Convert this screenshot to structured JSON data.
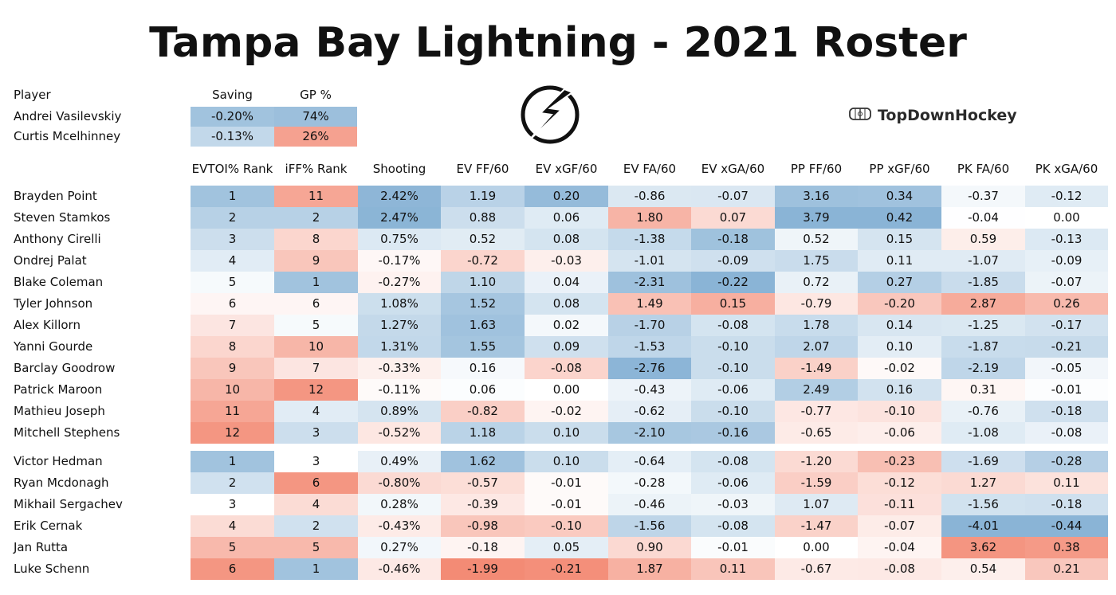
{
  "title": "Tampa Bay Lightning - 2021 Roster",
  "brand": {
    "label": "TopDownHockey",
    "icon": "rink-icon"
  },
  "logo": {
    "icon": "lightning-bolt-logo-icon"
  },
  "colors": {
    "blue_strong": "#8fb8d8",
    "blue_light": "#d6e7f4",
    "red_strong": "#f39079",
    "red_light": "#fde4df",
    "white": "#ffffff"
  },
  "goalies": {
    "headers": [
      "Player",
      "Saving",
      "GP %"
    ],
    "rows": [
      {
        "player": "Andrei Vasilevskiy",
        "saving": "-0.20%",
        "gp": "74%"
      },
      {
        "player": "Curtis Mcelhinney",
        "saving": "-0.13%",
        "gp": "26%"
      }
    ]
  },
  "skaters": {
    "headers": [
      "EVTOI% Rank",
      "iFF% Rank",
      "Shooting",
      "EV FF/60",
      "EV xGF/60",
      "EV FA/60",
      "EV xGA/60",
      "PP FF/60",
      "PP xGF/60",
      "PK FA/60",
      "PK xGA/60"
    ],
    "forwards": [
      {
        "player": "Brayden Point",
        "values": [
          "1",
          "11",
          "2.42%",
          "1.19",
          "0.20",
          "-0.86",
          "-0.07",
          "3.16",
          "0.34",
          "-0.37",
          "-0.12"
        ]
      },
      {
        "player": "Steven Stamkos",
        "values": [
          "2",
          "2",
          "2.47%",
          "0.88",
          "0.06",
          "1.80",
          "0.07",
          "3.79",
          "0.42",
          "-0.04",
          "0.00"
        ]
      },
      {
        "player": "Anthony Cirelli",
        "values": [
          "3",
          "8",
          "0.75%",
          "0.52",
          "0.08",
          "-1.38",
          "-0.18",
          "0.52",
          "0.15",
          "0.59",
          "-0.13"
        ]
      },
      {
        "player": "Ondrej Palat",
        "values": [
          "4",
          "9",
          "-0.17%",
          "-0.72",
          "-0.03",
          "-1.01",
          "-0.09",
          "1.75",
          "0.11",
          "-1.07",
          "-0.09"
        ]
      },
      {
        "player": "Blake Coleman",
        "values": [
          "5",
          "1",
          "-0.27%",
          "1.10",
          "0.04",
          "-2.31",
          "-0.22",
          "0.72",
          "0.27",
          "-1.85",
          "-0.07"
        ]
      },
      {
        "player": "Tyler Johnson",
        "values": [
          "6",
          "6",
          "1.08%",
          "1.52",
          "0.08",
          "1.49",
          "0.15",
          "-0.79",
          "-0.20",
          "2.87",
          "0.26"
        ]
      },
      {
        "player": "Alex Killorn",
        "values": [
          "7",
          "5",
          "1.27%",
          "1.63",
          "0.02",
          "-1.70",
          "-0.08",
          "1.78",
          "0.14",
          "-1.25",
          "-0.17"
        ]
      },
      {
        "player": "Yanni Gourde",
        "values": [
          "8",
          "10",
          "1.31%",
          "1.55",
          "0.09",
          "-1.53",
          "-0.10",
          "2.07",
          "0.10",
          "-1.87",
          "-0.21"
        ]
      },
      {
        "player": "Barclay Goodrow",
        "values": [
          "9",
          "7",
          "-0.33%",
          "0.16",
          "-0.08",
          "-2.76",
          "-0.10",
          "-1.49",
          "-0.02",
          "-2.19",
          "-0.05"
        ]
      },
      {
        "player": "Patrick Maroon",
        "values": [
          "10",
          "12",
          "-0.11%",
          "0.06",
          "0.00",
          "-0.43",
          "-0.06",
          "2.49",
          "0.16",
          "0.31",
          "-0.01"
        ]
      },
      {
        "player": "Mathieu Joseph",
        "values": [
          "11",
          "4",
          "0.89%",
          "-0.82",
          "-0.02",
          "-0.62",
          "-0.10",
          "-0.77",
          "-0.10",
          "-0.76",
          "-0.18"
        ]
      },
      {
        "player": "Mitchell Stephens",
        "values": [
          "12",
          "3",
          "-0.52%",
          "1.18",
          "0.10",
          "-2.10",
          "-0.16",
          "-0.65",
          "-0.06",
          "-1.08",
          "-0.08"
        ]
      }
    ],
    "defense": [
      {
        "player": "Victor Hedman",
        "values": [
          "1",
          "3",
          "0.49%",
          "1.62",
          "0.10",
          "-0.64",
          "-0.08",
          "-1.20",
          "-0.23",
          "-1.69",
          "-0.28"
        ]
      },
      {
        "player": "Ryan Mcdonagh",
        "values": [
          "2",
          "6",
          "-0.80%",
          "-0.57",
          "-0.01",
          "-0.28",
          "-0.06",
          "-1.59",
          "-0.12",
          "1.27",
          "0.11"
        ]
      },
      {
        "player": "Mikhail Sergachev",
        "values": [
          "3",
          "4",
          "0.28%",
          "-0.39",
          "-0.01",
          "-0.46",
          "-0.03",
          "1.07",
          "-0.11",
          "-1.56",
          "-0.18"
        ]
      },
      {
        "player": "Erik Cernak",
        "values": [
          "4",
          "2",
          "-0.43%",
          "-0.98",
          "-0.10",
          "-1.56",
          "-0.08",
          "-1.47",
          "-0.07",
          "-4.01",
          "-0.44"
        ]
      },
      {
        "player": "Jan Rutta",
        "values": [
          "5",
          "5",
          "0.27%",
          "-0.18",
          "0.05",
          "0.90",
          "-0.01",
          "0.00",
          "-0.04",
          "3.62",
          "0.38"
        ]
      },
      {
        "player": "Luke Schenn",
        "values": [
          "6",
          "1",
          "-0.46%",
          "-1.99",
          "-0.21",
          "1.87",
          "0.11",
          "-0.67",
          "-0.08",
          "0.54",
          "0.21"
        ]
      }
    ]
  },
  "chart_data": {
    "type": "table",
    "title": "Tampa Bay Lightning - 2021 Roster",
    "goalie_columns": [
      "Player",
      "Saving",
      "GP %"
    ],
    "goalies": [
      [
        "Andrei Vasilevskiy",
        "-0.20%",
        "74%"
      ],
      [
        "Curtis Mcelhinney",
        "-0.13%",
        "26%"
      ]
    ],
    "skater_columns": [
      "Player",
      "EVTOI% Rank",
      "iFF% Rank",
      "Shooting",
      "EV FF/60",
      "EV xGF/60",
      "EV FA/60",
      "EV xGA/60",
      "PP FF/60",
      "PP xGF/60",
      "PK FA/60",
      "PK xGA/60"
    ],
    "forwards": [
      [
        "Brayden Point",
        1,
        11,
        2.42,
        1.19,
        0.2,
        -0.86,
        -0.07,
        3.16,
        0.34,
        -0.37,
        -0.12
      ],
      [
        "Steven Stamkos",
        2,
        2,
        2.47,
        0.88,
        0.06,
        1.8,
        0.07,
        3.79,
        0.42,
        -0.04,
        0.0
      ],
      [
        "Anthony Cirelli",
        3,
        8,
        0.75,
        0.52,
        0.08,
        -1.38,
        -0.18,
        0.52,
        0.15,
        0.59,
        -0.13
      ],
      [
        "Ondrej Palat",
        4,
        9,
        -0.17,
        -0.72,
        -0.03,
        -1.01,
        -0.09,
        1.75,
        0.11,
        -1.07,
        -0.09
      ],
      [
        "Blake Coleman",
        5,
        1,
        -0.27,
        1.1,
        0.04,
        -2.31,
        -0.22,
        0.72,
        0.27,
        -1.85,
        -0.07
      ],
      [
        "Tyler Johnson",
        6,
        6,
        1.08,
        1.52,
        0.08,
        1.49,
        0.15,
        -0.79,
        -0.2,
        2.87,
        0.26
      ],
      [
        "Alex Killorn",
        7,
        5,
        1.27,
        1.63,
        0.02,
        -1.7,
        -0.08,
        1.78,
        0.14,
        -1.25,
        -0.17
      ],
      [
        "Yanni Gourde",
        8,
        10,
        1.31,
        1.55,
        0.09,
        -1.53,
        -0.1,
        2.07,
        0.1,
        -1.87,
        -0.21
      ],
      [
        "Barclay Goodrow",
        9,
        7,
        -0.33,
        0.16,
        -0.08,
        -2.76,
        -0.1,
        -1.49,
        -0.02,
        -2.19,
        -0.05
      ],
      [
        "Patrick Maroon",
        10,
        12,
        -0.11,
        0.06,
        0.0,
        -0.43,
        -0.06,
        2.49,
        0.16,
        0.31,
        -0.01
      ],
      [
        "Mathieu Joseph",
        11,
        4,
        0.89,
        -0.82,
        -0.02,
        -0.62,
        -0.1,
        -0.77,
        -0.1,
        -0.76,
        -0.18
      ],
      [
        "Mitchell Stephens",
        12,
        3,
        -0.52,
        1.18,
        0.1,
        -2.1,
        -0.16,
        -0.65,
        -0.06,
        -1.08,
        -0.08
      ]
    ],
    "defense": [
      [
        "Victor Hedman",
        1,
        3,
        0.49,
        1.62,
        0.1,
        -0.64,
        -0.08,
        -1.2,
        -0.23,
        -1.69,
        -0.28
      ],
      [
        "Ryan Mcdonagh",
        2,
        6,
        -0.8,
        -0.57,
        -0.01,
        -0.28,
        -0.06,
        -1.59,
        -0.12,
        1.27,
        0.11
      ],
      [
        "Mikhail Sergachev",
        3,
        4,
        0.28,
        -0.39,
        -0.01,
        -0.46,
        -0.03,
        1.07,
        -0.11,
        -1.56,
        -0.18
      ],
      [
        "Erik Cernak",
        4,
        2,
        -0.43,
        -0.98,
        -0.1,
        -1.56,
        -0.08,
        -1.47,
        -0.07,
        -4.01,
        -0.44
      ],
      [
        "Jan Rutta",
        5,
        5,
        0.27,
        -0.18,
        0.05,
        0.9,
        -0.01,
        0.0,
        -0.04,
        3.62,
        0.38
      ],
      [
        "Luke Schenn",
        6,
        1,
        -0.46,
        -1.99,
        -0.21,
        1.87,
        0.11,
        -0.67,
        -0.08,
        0.54,
        0.21
      ]
    ]
  }
}
